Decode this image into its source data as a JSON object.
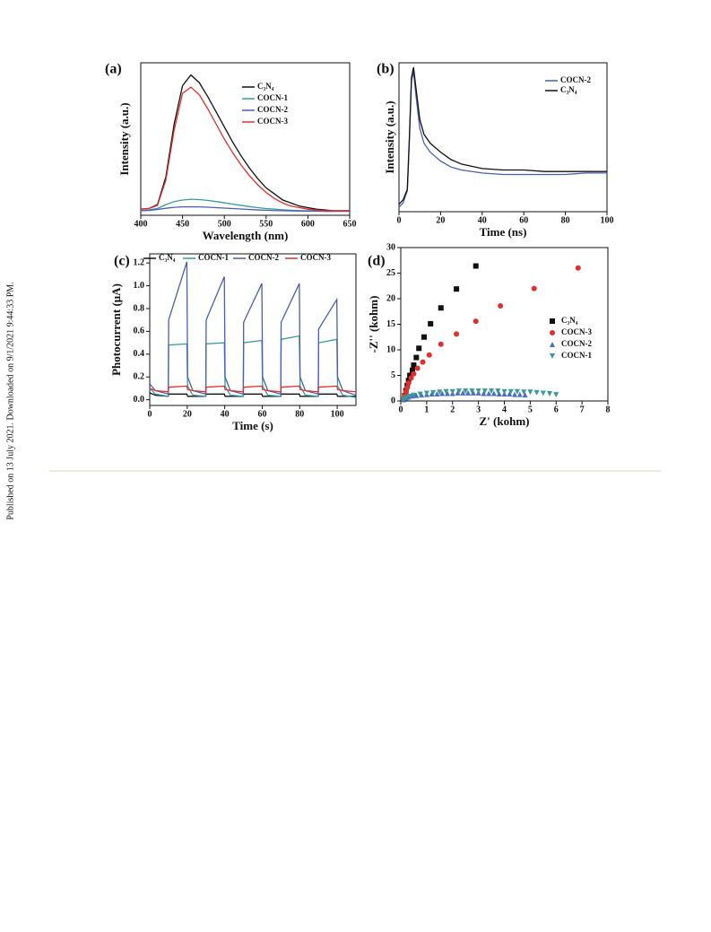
{
  "side_note": "Published on 13 July 2021. Downloaded on 9/1/2021 9:44:33 PM.",
  "chart_data": [
    {
      "type": "line",
      "panel_label": "(a)",
      "x_label": "Wavelength (nm)",
      "y_label": "Intensity (a.u.)",
      "x": [
        400,
        410,
        420,
        430,
        440,
        450,
        460,
        470,
        480,
        490,
        500,
        510,
        520,
        530,
        540,
        550,
        560,
        570,
        580,
        590,
        600,
        610,
        620,
        630,
        640,
        650
      ],
      "xlim": [
        400,
        650
      ],
      "xticks": [
        400,
        450,
        500,
        550,
        600,
        650
      ],
      "ylim": [
        0,
        100
      ],
      "series": [
        {
          "name": "C₃N₄",
          "color": "#111111",
          "values": [
            4,
            4.5,
            7,
            25,
            60,
            85,
            92,
            87,
            78,
            68,
            58,
            48,
            39,
            31,
            24,
            18,
            14,
            10,
            8,
            6,
            5,
            4,
            3.5,
            3,
            3,
            3
          ]
        },
        {
          "name": "COCN-1",
          "color": "#3a9a9a",
          "values": [
            3,
            3.5,
            4.5,
            7,
            9,
            10,
            10.5,
            10.3,
            9.8,
            9,
            8.2,
            7.3,
            6.5,
            5.7,
            5,
            4.4,
            4,
            3.6,
            3.3,
            3.1,
            3,
            2.9,
            2.8,
            2.8,
            2.7,
            2.7
          ]
        },
        {
          "name": "COCN-2",
          "color": "#4a5fb0",
          "values": [
            3,
            3.2,
            3.8,
            4.6,
            5.2,
            5.5,
            5.6,
            5.5,
            5.3,
            5,
            4.7,
            4.4,
            4.1,
            3.8,
            3.5,
            3.3,
            3.1,
            3,
            2.9,
            2.8,
            2.7,
            2.7,
            2.6,
            2.6,
            2.6,
            2.6
          ]
        },
        {
          "name": "COCN-3",
          "color": "#e0302c",
          "values": [
            4,
            4.5,
            6.5,
            23,
            56,
            80,
            84,
            79,
            70,
            60,
            50,
            41,
            33,
            26,
            20,
            15,
            11,
            8,
            6,
            5,
            4,
            3.5,
            3,
            3,
            3,
            3
          ]
        }
      ]
    },
    {
      "type": "line",
      "panel_label": "(b)",
      "x_label": "Time (ns)",
      "y_label": "Intensity (a.u.)",
      "x": [
        0,
        2,
        4,
        5,
        6,
        7,
        8,
        10,
        12,
        15,
        20,
        25,
        30,
        40,
        50,
        60,
        70,
        80,
        90,
        100
      ],
      "xlim": [
        0,
        100
      ],
      "xticks": [
        0,
        20,
        40,
        60,
        80,
        100
      ],
      "ylim": [
        0,
        100
      ],
      "series": [
        {
          "name": "COCN-2",
          "color": "#4a5fb0",
          "values": [
            3,
            6,
            14,
            48,
            88,
            94,
            80,
            56,
            46,
            40,
            34,
            30,
            28,
            26,
            25,
            25,
            25,
            25,
            26,
            26
          ]
        },
        {
          "name": "C₃N₄",
          "color": "#111111",
          "values": [
            5,
            8,
            15,
            50,
            90,
            97,
            85,
            62,
            52,
            46,
            40,
            35,
            32,
            29,
            28,
            28,
            27,
            27,
            27,
            27
          ]
        }
      ]
    },
    {
      "type": "line",
      "panel_label": "(c)",
      "x_label": "Time (s)",
      "y_label": "Photocurrent (μA)",
      "x": [
        0,
        3,
        9.9,
        10.1,
        19.8,
        20.2,
        23,
        29.9,
        30.1,
        39.8,
        40.2,
        43,
        49.9,
        50.1,
        59.8,
        60.2,
        63,
        69.9,
        70.1,
        79.8,
        80.2,
        83,
        89.9,
        90.1,
        99.8,
        100.2,
        103,
        110
      ],
      "xlim": [
        0,
        110
      ],
      "xticks": [
        0,
        20,
        40,
        60,
        80,
        100
      ],
      "ylim": [
        -0.05,
        1.28
      ],
      "yticks": [
        {
          "value": 0,
          "label": "0.0"
        },
        {
          "value": 0.2,
          "label": "0.2"
        },
        {
          "value": 0.4,
          "label": "0.4"
        },
        {
          "value": 0.6,
          "label": "0.6"
        },
        {
          "value": 0.8,
          "label": "0.8"
        },
        {
          "value": 1,
          "label": "1.0"
        },
        {
          "value": 1.2,
          "label": "1.2"
        }
      ],
      "series": [
        {
          "name": "C₃N₄",
          "color": "#111111",
          "values": [
            0.06,
            0.04,
            0.03,
            0.05,
            0.05,
            0.03,
            0.03,
            0.03,
            0.05,
            0.05,
            0.03,
            0.03,
            0.03,
            0.05,
            0.05,
            0.03,
            0.03,
            0.03,
            0.05,
            0.05,
            0.03,
            0.03,
            0.03,
            0.05,
            0.05,
            0.03,
            0.03,
            0.03
          ]
        },
        {
          "name": "COCN-1",
          "color": "#3a9a9a",
          "values": [
            0.1,
            0.05,
            0.03,
            0.48,
            0.49,
            0.12,
            0.04,
            0.03,
            0.49,
            0.5,
            0.12,
            0.04,
            0.03,
            0.5,
            0.52,
            0.12,
            0.04,
            0.03,
            0.53,
            0.56,
            0.12,
            0.04,
            0.03,
            0.5,
            0.53,
            0.12,
            0.04,
            0.02
          ]
        },
        {
          "name": "COCN-2",
          "color": "#4a5fb0",
          "values": [
            0.14,
            0.08,
            0.05,
            0.7,
            1.21,
            0.2,
            0.08,
            0.05,
            0.7,
            1.08,
            0.2,
            0.08,
            0.05,
            0.68,
            1.02,
            0.2,
            0.08,
            0.05,
            0.68,
            1.02,
            0.2,
            0.08,
            0.05,
            0.62,
            0.88,
            0.2,
            0.08,
            0.04
          ]
        },
        {
          "name": "COCN-3",
          "color": "#e0302c",
          "values": [
            0.1,
            0.08,
            0.07,
            0.11,
            0.12,
            0.09,
            0.08,
            0.07,
            0.11,
            0.12,
            0.09,
            0.08,
            0.07,
            0.11,
            0.12,
            0.09,
            0.08,
            0.07,
            0.11,
            0.12,
            0.09,
            0.08,
            0.07,
            0.11,
            0.12,
            0.09,
            0.08,
            0.07
          ]
        }
      ]
    },
    {
      "type": "scatter",
      "panel_label": "(d)",
      "x_label": "Z' (kohm)",
      "y_label": "-Z'' (kohm)",
      "xlim": [
        0,
        8
      ],
      "xticks": [
        0,
        1,
        2,
        3,
        4,
        5,
        6,
        7,
        8
      ],
      "ylim": [
        0,
        30
      ],
      "yticks": [
        0,
        5,
        10,
        15,
        20,
        25,
        30
      ],
      "series": [
        {
          "name": "C₃N₄",
          "color": "#111111",
          "marker": "square",
          "x": [
            0.1,
            0.15,
            0.2,
            0.25,
            0.3,
            0.35,
            0.45,
            0.5,
            0.6,
            0.7,
            0.9,
            1.15,
            1.55,
            2.15,
            2.9
          ],
          "values": [
            0.3,
            1,
            2,
            3,
            4,
            5,
            6,
            7,
            8.5,
            10.3,
            12.5,
            15.1,
            18.2,
            21.9,
            26.4
          ]
        },
        {
          "name": "COCN-3",
          "color": "#e0302c",
          "marker": "circle",
          "x": [
            0.1,
            0.15,
            0.2,
            0.25,
            0.3,
            0.4,
            0.5,
            0.65,
            0.85,
            1.1,
            1.55,
            2.15,
            2.9,
            3.85,
            5.15,
            6.85
          ],
          "values": [
            0.3,
            1,
            1.8,
            2.6,
            3.5,
            4.5,
            5.3,
            6.4,
            7.6,
            9,
            11.1,
            13.1,
            15.6,
            18.6,
            22,
            26
          ]
        },
        {
          "name": "COCN-2",
          "color": "#4a6fc0",
          "marker": "triangle-up",
          "x": [
            0.1,
            0.2,
            0.3,
            0.45,
            0.6,
            0.8,
            1,
            1.2,
            1.4,
            1.6,
            1.8,
            2,
            2.2,
            2.4,
            2.6,
            2.8,
            3,
            3.2,
            3.4,
            3.6,
            3.8,
            4,
            4.2,
            4.4,
            4.6,
            4.8
          ],
          "values": [
            0.3,
            0.6,
            0.8,
            1,
            1.1,
            1.2,
            1.3,
            1.4,
            1.4,
            1.5,
            1.5,
            1.5,
            1.6,
            1.6,
            1.6,
            1.6,
            1.6,
            1.5,
            1.5,
            1.5,
            1.4,
            1.4,
            1.4,
            1.3,
            1.3,
            1.2
          ]
        },
        {
          "name": "COCN-1",
          "color": "#3a9a9a",
          "marker": "triangle-down",
          "x": [
            0.1,
            0.2,
            0.35,
            0.5,
            0.75,
            1,
            1.25,
            1.5,
            1.75,
            2,
            2.25,
            2.5,
            2.75,
            3,
            3.25,
            3.5,
            3.75,
            4,
            4.25,
            4.5,
            4.75,
            5,
            5.25,
            5.5,
            5.75,
            6
          ],
          "values": [
            0.3,
            0.6,
            0.9,
            1.1,
            1.3,
            1.5,
            1.6,
            1.7,
            1.8,
            1.8,
            1.9,
            1.9,
            1.9,
            1.9,
            1.9,
            1.9,
            1.9,
            1.8,
            1.8,
            1.8,
            1.7,
            1.7,
            1.6,
            1.5,
            1.4,
            1.2
          ]
        }
      ]
    }
  ]
}
